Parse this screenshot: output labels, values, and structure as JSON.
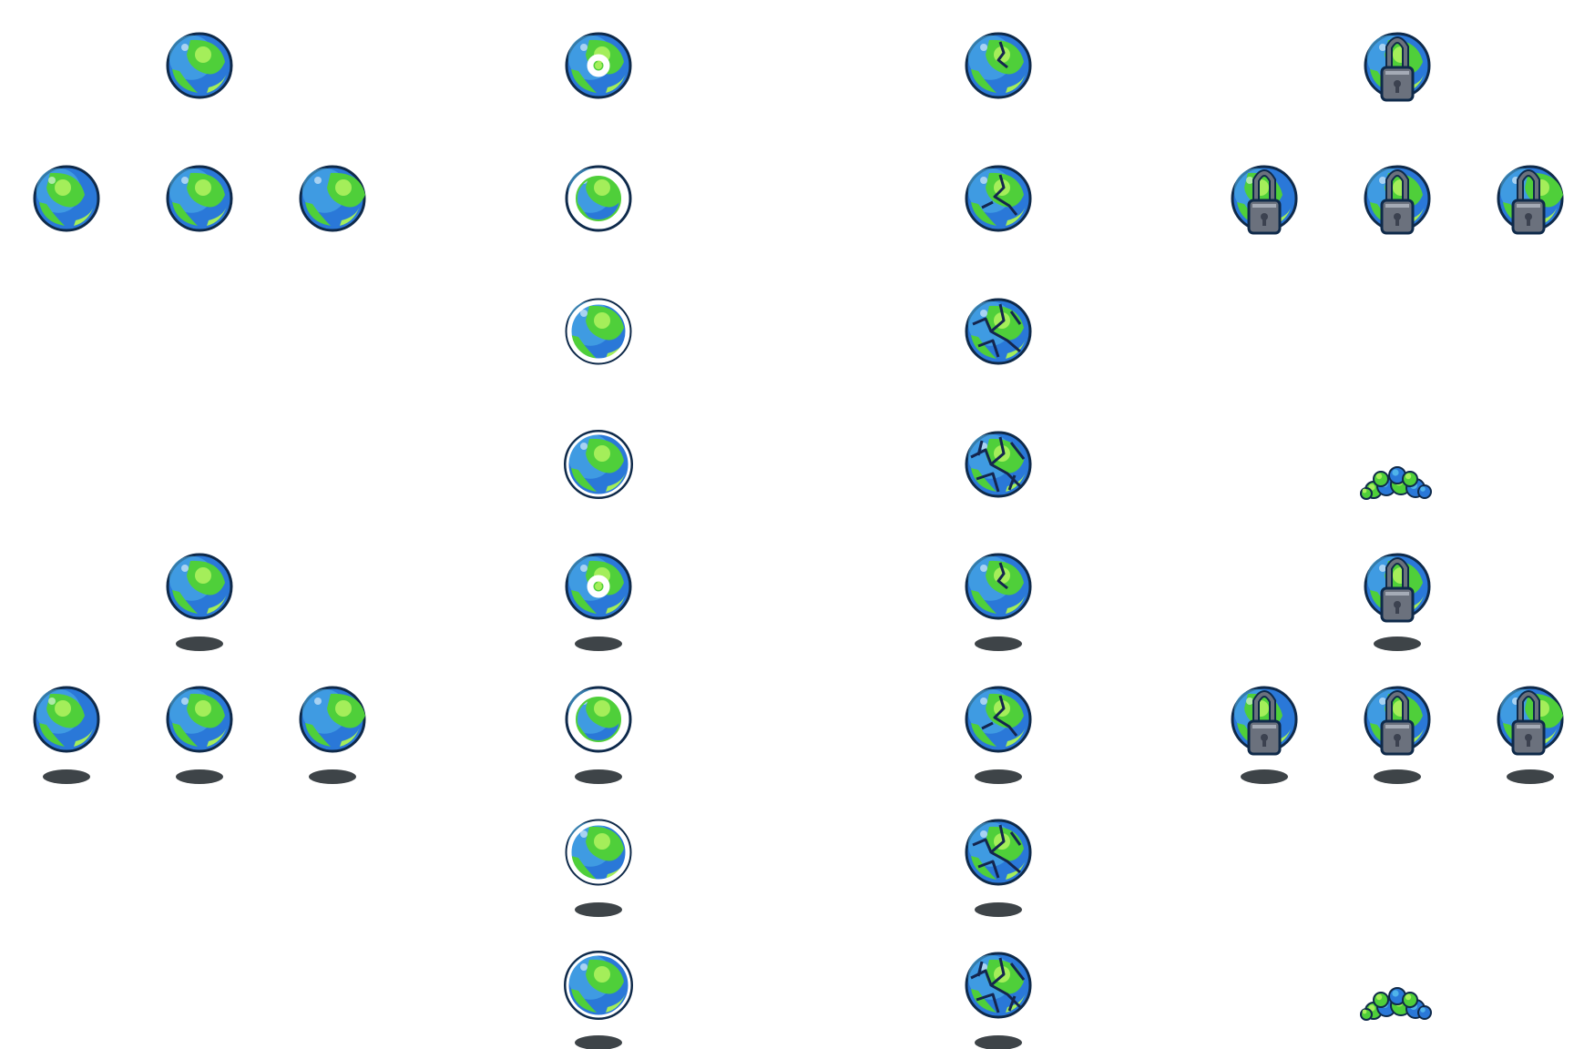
{
  "colors": {
    "outline": "#0f2a4a",
    "ocean": "#2a78d8",
    "ocean_light": "#4fb3ea",
    "land": "#4fcf3a",
    "land_light": "#a4ee5a",
    "crack": "#14254e",
    "ring": "#ffffff",
    "lock_body": "#6b717d",
    "lock_dark": "#3c4250",
    "lock_light": "#a5abb6",
    "shadow": "#3e4448"
  },
  "rows": [
    {
      "shadow": false,
      "sprites": [
        {
          "kind": "orb-idle-up"
        },
        {
          "kind": "orb-shield-1"
        },
        {
          "kind": "orb-crack-1"
        },
        {
          "kind": "orb-lock-up"
        }
      ]
    },
    {
      "shadow": false,
      "sprites": [
        {
          "kind": "orb-idle-left"
        },
        {
          "kind": "orb-idle-front"
        },
        {
          "kind": "orb-idle-right"
        },
        {
          "kind": "orb-shield-2"
        },
        {
          "kind": "orb-crack-2"
        },
        {
          "kind": "orb-lock-left"
        },
        {
          "kind": "orb-lock-front"
        },
        {
          "kind": "orb-lock-right"
        }
      ]
    },
    {
      "shadow": false,
      "sprites": [
        {
          "kind": "orb-shield-3"
        },
        {
          "kind": "orb-crack-3"
        }
      ]
    },
    {
      "shadow": false,
      "sprites": [
        {
          "kind": "orb-shield-4"
        },
        {
          "kind": "orb-crack-4"
        },
        {
          "kind": "orb-rubble"
        }
      ]
    },
    {
      "shadow": true,
      "sprites": [
        {
          "kind": "orb-idle-up"
        },
        {
          "kind": "orb-shield-1"
        },
        {
          "kind": "orb-crack-1"
        },
        {
          "kind": "orb-lock-up"
        }
      ]
    },
    {
      "shadow": true,
      "sprites": [
        {
          "kind": "orb-idle-left"
        },
        {
          "kind": "orb-idle-front"
        },
        {
          "kind": "orb-idle-right"
        },
        {
          "kind": "orb-shield-2"
        },
        {
          "kind": "orb-crack-2"
        },
        {
          "kind": "orb-lock-left"
        },
        {
          "kind": "orb-lock-front"
        },
        {
          "kind": "orb-lock-right"
        }
      ]
    },
    {
      "shadow": true,
      "sprites": [
        {
          "kind": "orb-shield-3"
        },
        {
          "kind": "orb-crack-3"
        }
      ]
    },
    {
      "shadow": true,
      "sprites": [
        {
          "kind": "orb-shield-4"
        },
        {
          "kind": "orb-crack-4"
        },
        {
          "kind": "orb-rubble"
        }
      ]
    }
  ]
}
